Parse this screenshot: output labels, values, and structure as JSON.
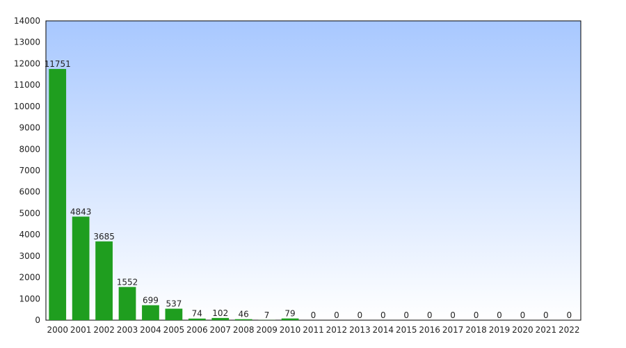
{
  "chart_data": {
    "type": "bar",
    "title": "",
    "xlabel": "",
    "ylabel": "",
    "categories": [
      "2000",
      "2001",
      "2002",
      "2003",
      "2004",
      "2005",
      "2006",
      "2007",
      "2008",
      "2009",
      "2010",
      "2011",
      "2012",
      "2013",
      "2014",
      "2015",
      "2016",
      "2017",
      "2018",
      "2019",
      "2020",
      "2021",
      "2022"
    ],
    "values": [
      11751,
      4843,
      3685,
      1552,
      699,
      537,
      74,
      102,
      46,
      7,
      79,
      0,
      0,
      0,
      0,
      0,
      0,
      0,
      0,
      0,
      0,
      0,
      0
    ],
    "value_labels": [
      "11751",
      "4843",
      "3685",
      "1552",
      "699",
      "537",
      "74",
      "102",
      "46",
      "7",
      "79",
      "0",
      "0",
      "0",
      "0",
      "0",
      "0",
      "0",
      "0",
      "0",
      "0",
      "0",
      "0"
    ],
    "yticks": [
      "0",
      "1000",
      "2000",
      "3000",
      "4000",
      "5000",
      "6000",
      "7000",
      "8000",
      "9000",
      "10000",
      "11000",
      "12000",
      "13000",
      "14000"
    ],
    "ylim": [
      0,
      14000
    ],
    "grid": false,
    "legend": "none",
    "colors": {
      "bar": "#1f9e1f",
      "background_top": "#a8c8ff",
      "background_bottom": "#ffffff",
      "axis": "#000000"
    }
  }
}
